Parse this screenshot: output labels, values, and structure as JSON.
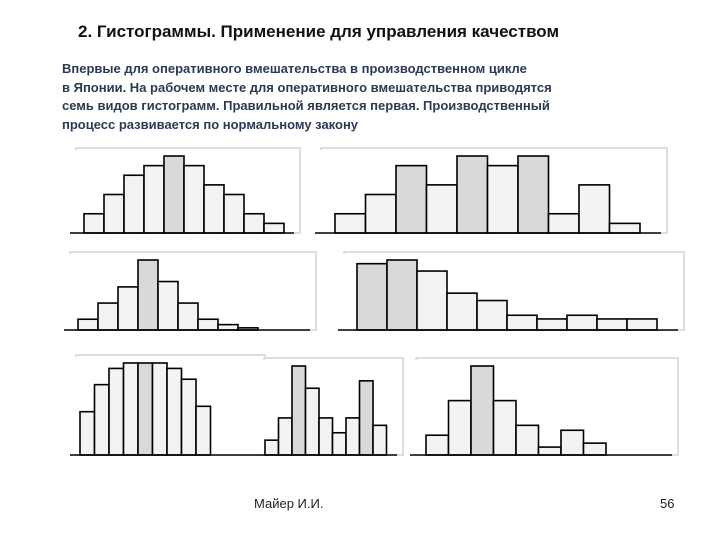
{
  "slide": {
    "title": "2. Гистограммы. Применение для управления качеством",
    "body_lines": [
      "Впервые для оперативного вмешательства в производственном цикле",
      "в Японии. На рабочем месте для оперативного вмешательства приводятся",
      "семь видов гистограмм. Правильной является первая. Производственный",
      "процесс развивается по нормальному закону"
    ],
    "author": "Майер И.И.",
    "page_number": "56"
  },
  "colors": {
    "light_bar": "#f3f3f3",
    "mid_bar": "#d9d9d9",
    "dark_bar": "#bdbdbd",
    "shadow": "#d4d4d4",
    "outline": "#000000"
  },
  "chart_data": [
    {
      "type": "bar",
      "title": "",
      "values": [
        2,
        4,
        6,
        7,
        8,
        7,
        5,
        4,
        2,
        1
      ],
      "shades": [
        "L",
        "L",
        "L",
        "L",
        "M",
        "L",
        "L",
        "L",
        "L",
        "L"
      ]
    },
    {
      "type": "bar",
      "title": "",
      "values": [
        2,
        4,
        7,
        5,
        8,
        7,
        8,
        2,
        5,
        1
      ],
      "shades": [
        "L",
        "L",
        "M",
        "L",
        "M",
        "L",
        "M",
        "L",
        "L",
        "L"
      ]
    },
    {
      "type": "bar",
      "title": "",
      "values": [
        1,
        2.5,
        4,
        6.5,
        4.5,
        2.5,
        1,
        0.5,
        0.2
      ],
      "shades": [
        "L",
        "L",
        "L",
        "M",
        "L",
        "L",
        "L",
        "L",
        "L"
      ]
    },
    {
      "type": "bar",
      "title": "",
      "values": [
        9,
        9.5,
        8,
        5,
        4,
        2,
        1.5,
        2,
        1.5,
        1.5
      ],
      "shades": [
        "M",
        "M",
        "L",
        "L",
        "L",
        "L",
        "L",
        "L",
        "L",
        "L"
      ]
    },
    {
      "type": "bar",
      "title": "",
      "values": [
        4,
        6.5,
        8,
        8.5,
        8.5,
        8.5,
        8,
        7,
        4.5
      ],
      "shades": [
        "L",
        "L",
        "L",
        "L",
        "M",
        "L",
        "L",
        "L",
        "L"
      ]
    },
    {
      "type": "bar",
      "title": "",
      "values": [
        1,
        2.5,
        6,
        4.5,
        2.5,
        1.5,
        2.5,
        5,
        2
      ],
      "shades": [
        "L",
        "L",
        "M",
        "L",
        "L",
        "L",
        "L",
        "M",
        "L"
      ]
    },
    {
      "type": "bar",
      "title": "",
      "values": [
        2,
        5.5,
        9,
        5.5,
        3,
        0.8,
        2.5,
        1.2
      ],
      "shades": [
        "L",
        "L",
        "M",
        "L",
        "L",
        "L",
        "L",
        "L"
      ]
    }
  ]
}
